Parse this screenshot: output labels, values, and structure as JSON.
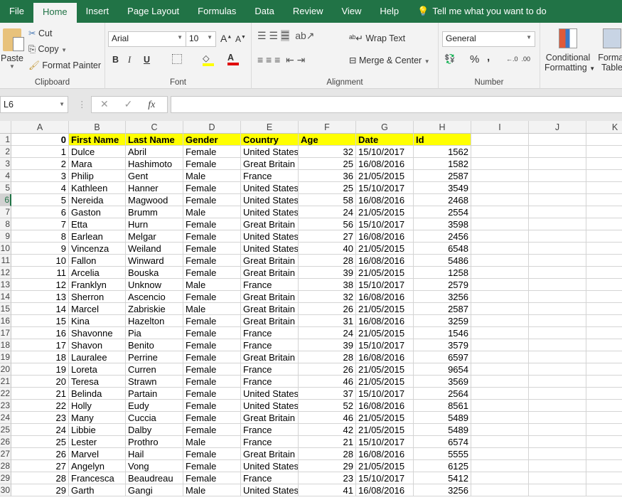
{
  "tabs": [
    "File",
    "Home",
    "Insert",
    "Page Layout",
    "Formulas",
    "Data",
    "Review",
    "View",
    "Help"
  ],
  "tell_me": "Tell me what you want to do",
  "ribbon": {
    "clipboard": {
      "label": "Clipboard",
      "paste": "Paste",
      "cut": "Cut",
      "copy": "Copy",
      "format_painter": "Format Painter"
    },
    "font": {
      "label": "Font",
      "font_name": "Arial",
      "font_size": "10",
      "bold": "B",
      "italic": "I",
      "underline": "U"
    },
    "alignment": {
      "label": "Alignment",
      "wrap_text": "Wrap Text",
      "merge_center": "Merge & Center"
    },
    "number": {
      "label": "Number",
      "format": "General",
      "percent": "%",
      "comma": ","
    },
    "styles": {
      "conditional": "Conditional",
      "formatting": "Formatting",
      "format_as": "Format",
      "table": "Table"
    },
    "colors": {
      "fill": "#ffff00",
      "font": "#e00000",
      "accent": "#217346"
    }
  },
  "formula_bar": {
    "name_box": "L6",
    "fx": "fx",
    "value": ""
  },
  "selected_row": 6,
  "columns": [
    "A",
    "B",
    "C",
    "D",
    "E",
    "F",
    "G",
    "H",
    "I",
    "J",
    "K"
  ],
  "header_row": [
    "0",
    "First Name",
    "Last Name",
    "Gender",
    "Country",
    "Age",
    "Date",
    "Id"
  ],
  "rows": [
    [
      "1",
      "Dulce",
      "Abril",
      "Female",
      "United States",
      "32",
      "15/10/2017",
      "1562"
    ],
    [
      "2",
      "Mara",
      "Hashimoto",
      "Female",
      "Great Britain",
      "25",
      "16/08/2016",
      "1582"
    ],
    [
      "3",
      "Philip",
      "Gent",
      "Male",
      "France",
      "36",
      "21/05/2015",
      "2587"
    ],
    [
      "4",
      "Kathleen",
      "Hanner",
      "Female",
      "United States",
      "25",
      "15/10/2017",
      "3549"
    ],
    [
      "5",
      "Nereida",
      "Magwood",
      "Female",
      "United States",
      "58",
      "16/08/2016",
      "2468"
    ],
    [
      "6",
      "Gaston",
      "Brumm",
      "Male",
      "United States",
      "24",
      "21/05/2015",
      "2554"
    ],
    [
      "7",
      "Etta",
      "Hurn",
      "Female",
      "Great Britain",
      "56",
      "15/10/2017",
      "3598"
    ],
    [
      "8",
      "Earlean",
      "Melgar",
      "Female",
      "United States",
      "27",
      "16/08/2016",
      "2456"
    ],
    [
      "9",
      "Vincenza",
      "Weiland",
      "Female",
      "United States",
      "40",
      "21/05/2015",
      "6548"
    ],
    [
      "10",
      "Fallon",
      "Winward",
      "Female",
      "Great Britain",
      "28",
      "16/08/2016",
      "5486"
    ],
    [
      "11",
      "Arcelia",
      "Bouska",
      "Female",
      "Great Britain",
      "39",
      "21/05/2015",
      "1258"
    ],
    [
      "12",
      "Franklyn",
      "Unknow",
      "Male",
      "France",
      "38",
      "15/10/2017",
      "2579"
    ],
    [
      "13",
      "Sherron",
      "Ascencio",
      "Female",
      "Great Britain",
      "32",
      "16/08/2016",
      "3256"
    ],
    [
      "14",
      "Marcel",
      "Zabriskie",
      "Male",
      "Great Britain",
      "26",
      "21/05/2015",
      "2587"
    ],
    [
      "15",
      "Kina",
      "Hazelton",
      "Female",
      "Great Britain",
      "31",
      "16/08/2016",
      "3259"
    ],
    [
      "16",
      "Shavonne",
      "Pia",
      "Female",
      "France",
      "24",
      "21/05/2015",
      "1546"
    ],
    [
      "17",
      "Shavon",
      "Benito",
      "Female",
      "France",
      "39",
      "15/10/2017",
      "3579"
    ],
    [
      "18",
      "Lauralee",
      "Perrine",
      "Female",
      "Great Britain",
      "28",
      "16/08/2016",
      "6597"
    ],
    [
      "19",
      "Loreta",
      "Curren",
      "Female",
      "France",
      "26",
      "21/05/2015",
      "9654"
    ],
    [
      "20",
      "Teresa",
      "Strawn",
      "Female",
      "France",
      "46",
      "21/05/2015",
      "3569"
    ],
    [
      "21",
      "Belinda",
      "Partain",
      "Female",
      "United States",
      "37",
      "15/10/2017",
      "2564"
    ],
    [
      "22",
      "Holly",
      "Eudy",
      "Female",
      "United States",
      "52",
      "16/08/2016",
      "8561"
    ],
    [
      "23",
      "Many",
      "Cuccia",
      "Female",
      "Great Britain",
      "46",
      "21/05/2015",
      "5489"
    ],
    [
      "24",
      "Libbie",
      "Dalby",
      "Female",
      "France",
      "42",
      "21/05/2015",
      "5489"
    ],
    [
      "25",
      "Lester",
      "Prothro",
      "Male",
      "France",
      "21",
      "15/10/2017",
      "6574"
    ],
    [
      "26",
      "Marvel",
      "Hail",
      "Female",
      "Great Britain",
      "28",
      "16/08/2016",
      "5555"
    ],
    [
      "27",
      "Angelyn",
      "Vong",
      "Female",
      "United States",
      "29",
      "21/05/2015",
      "6125"
    ],
    [
      "28",
      "Francesca",
      "Beaudreau",
      "Female",
      "France",
      "23",
      "15/10/2017",
      "5412"
    ],
    [
      "29",
      "Garth",
      "Gangi",
      "Male",
      "United States",
      "41",
      "16/08/2016",
      "3256"
    ]
  ]
}
